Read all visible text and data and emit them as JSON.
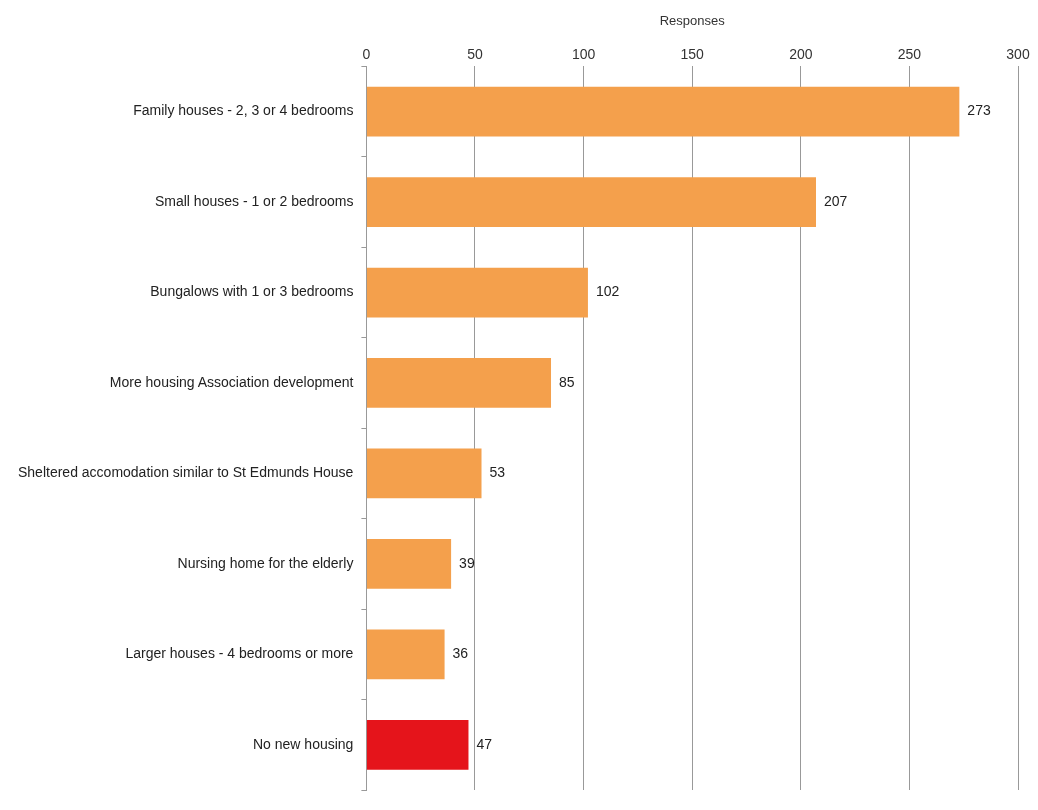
{
  "chart_data": {
    "type": "bar",
    "orientation": "horizontal",
    "xlabel": "Responses",
    "categories": [
      "Family houses - 2, 3 or 4 bedrooms",
      "Small houses - 1 or 2 bedrooms",
      "Bungalows with 1 or 3 bedrooms",
      "More housing Association development",
      "Sheltered accomodation similar to St Edmunds House",
      "Nursing home for the elderly",
      "Larger houses - 4 bedrooms or more",
      "No new housing"
    ],
    "values": [
      273,
      207,
      102,
      85,
      53,
      39,
      36,
      47
    ],
    "colors": [
      "#f4a04c",
      "#f4a04c",
      "#f4a04c",
      "#f4a04c",
      "#f4a04c",
      "#f4a04c",
      "#f4a04c",
      "#e5141b"
    ],
    "xlim": [
      0,
      300
    ],
    "xticks": [
      0,
      50,
      100,
      150,
      200,
      250,
      300
    ],
    "grid": "x",
    "data_labels": true,
    "legend": false
  }
}
